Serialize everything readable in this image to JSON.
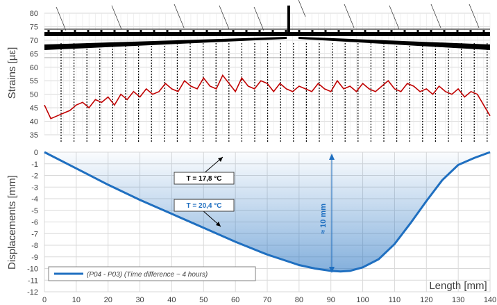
{
  "chart_data": [
    {
      "type": "line",
      "ylabel": "Strains [µε]",
      "ylim": [
        35,
        80
      ],
      "yticks": [
        35,
        40,
        45,
        50,
        55,
        60,
        65,
        70,
        75,
        80
      ],
      "grid": true,
      "series": [
        {
          "color": "#c00000",
          "x": [
            0,
            2,
            4,
            6,
            8,
            10,
            12,
            14,
            16,
            18,
            20,
            22,
            24,
            26,
            28,
            30,
            32,
            34,
            36,
            38,
            40,
            42,
            44,
            46,
            48,
            50,
            52,
            54,
            56,
            58,
            60,
            62,
            64,
            66,
            68,
            70,
            72,
            74,
            76,
            78,
            80,
            82,
            84,
            86,
            88,
            90,
            92,
            94,
            96,
            98,
            100,
            102,
            104,
            106,
            108,
            110,
            112,
            114,
            116,
            118,
            120,
            122,
            124,
            126,
            128,
            130,
            132,
            134,
            136,
            138,
            140
          ],
          "values": [
            46,
            41,
            42,
            43,
            44,
            46,
            47,
            45,
            48,
            47,
            49,
            46,
            50,
            48,
            51,
            49,
            52,
            50,
            51,
            54,
            52,
            51,
            55,
            53,
            52,
            56,
            53,
            52,
            57,
            54,
            51,
            56,
            53,
            52,
            55,
            54,
            51,
            54,
            52,
            51,
            53,
            52,
            51,
            54,
            52,
            51,
            55,
            52,
            53,
            51,
            54,
            52,
            51,
            53,
            55,
            52,
            51,
            54,
            53,
            51,
            52,
            50,
            53,
            51,
            50,
            52,
            49,
            51,
            50,
            46,
            42
          ]
        }
      ]
    },
    {
      "type": "area",
      "ylabel": "Displacements [mm]",
      "xlabel": "Length [mm]",
      "xlim": [
        0,
        140
      ],
      "ylim": [
        -12,
        0
      ],
      "xticks": [
        0,
        10,
        20,
        30,
        40,
        50,
        60,
        70,
        80,
        90,
        100,
        110,
        120,
        130,
        140
      ],
      "yticks": [
        0,
        -1,
        -2,
        -3,
        -4,
        -5,
        -6,
        -7,
        -8,
        -9,
        -10,
        -11,
        -12
      ],
      "grid": true,
      "legend": "bottom-left",
      "series": [
        {
          "name": "(P04 - P03) (Time difference ~ 4 hours)",
          "color": "#1f6fc0",
          "x": [
            0,
            10,
            20,
            30,
            40,
            50,
            60,
            70,
            80,
            85,
            90,
            93,
            96,
            100,
            105,
            110,
            115,
            120,
            125,
            130,
            135,
            140
          ],
          "values": [
            0,
            -1.4,
            -2.8,
            -4.1,
            -5.3,
            -6.5,
            -7.7,
            -8.8,
            -9.7,
            -10.0,
            -10.2,
            -10.25,
            -10.2,
            -9.9,
            -9.2,
            -7.9,
            -6.1,
            -4.2,
            -2.4,
            -1.1,
            -0.5,
            0
          ]
        }
      ],
      "annotations": {
        "t1": "T = 17,8 °C",
        "t2": "T = 20,4 °C",
        "delta": "≈ 10 mm"
      }
    }
  ],
  "colors": {
    "strain_line": "#c00000",
    "displacement_line": "#1f6fc0",
    "annotation_blue": "#1f6fc0",
    "grid": "#d9d9d9",
    "dotted": "#000000"
  }
}
